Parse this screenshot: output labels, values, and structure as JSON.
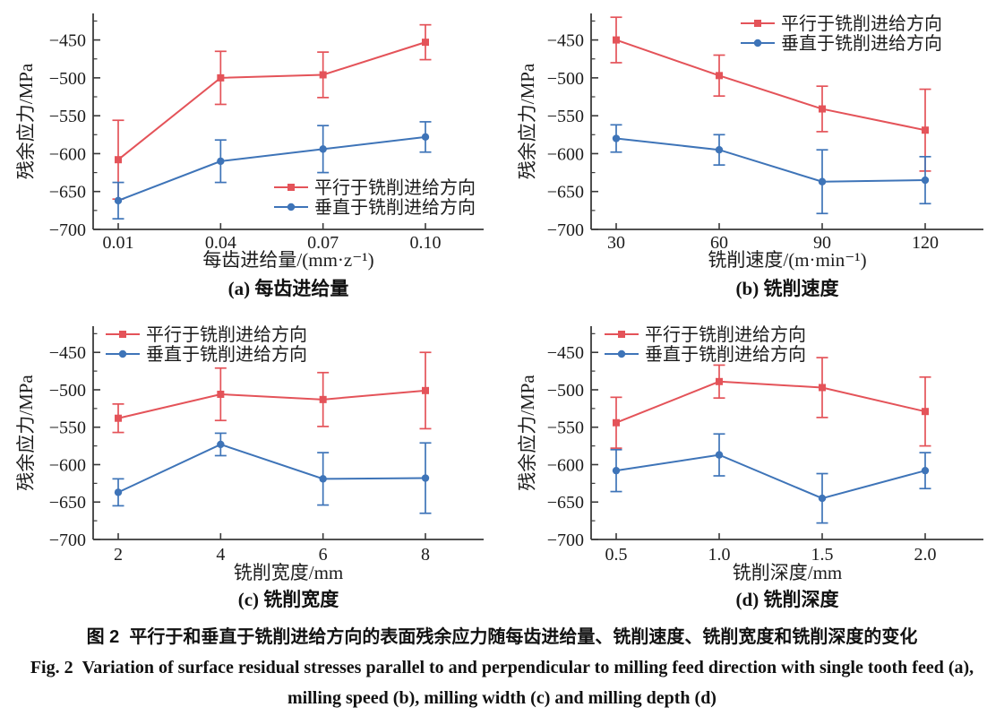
{
  "figure_caption": {
    "zh": "图 2  平行于和垂直于铣削进给方向的表面残余应力随每齿进给量、铣削速度、铣削宽度和铣削深度的变化",
    "en1": "Fig. 2  Variation of surface residual stresses parallel to and perpendicular to milling feed direction with single tooth feed (a),",
    "en2": "milling speed (b), milling width (c) and milling depth (d)"
  },
  "colors": {
    "parallel": "#e45359",
    "perpendicular": "#3e74b8",
    "axis": "#3a3a3a",
    "text": "#1c1c1c"
  },
  "legend_labels": {
    "parallel": "平行于铣削进给方向",
    "perpendicular": "垂直于铣削进给方向"
  },
  "chart_data": [
    {
      "id": "a",
      "type": "line",
      "panel_label": "(a) 每齿进给量",
      "xlabel": "每齿进给量/(mm·z⁻¹)",
      "ylabel": "残余应力/MPa",
      "categories": [
        "0.01",
        "0.04",
        "0.07",
        "0.10"
      ],
      "ylim": [
        -700,
        -415
      ],
      "yticks": [
        -450,
        -500,
        -550,
        -600,
        -650,
        -700
      ],
      "legend_position": "bottom-right",
      "series": [
        {
          "name": "平行于铣削进给方向",
          "key": "parallel",
          "marker": "square",
          "values": [
            -608,
            -500,
            -496,
            -453
          ],
          "errors": [
            52,
            35,
            30,
            23
          ]
        },
        {
          "name": "垂直于铣削进给方向",
          "key": "perpendicular",
          "marker": "circle",
          "values": [
            -662,
            -610,
            -594,
            -578
          ],
          "errors": [
            24,
            28,
            31,
            20
          ]
        }
      ]
    },
    {
      "id": "b",
      "type": "line",
      "panel_label": "(b) 铣削速度",
      "xlabel": "铣削速度/(m·min⁻¹)",
      "ylabel": "残余应力/MPa",
      "categories": [
        "30",
        "60",
        "90",
        "120"
      ],
      "ylim": [
        -700,
        -415
      ],
      "yticks": [
        -450,
        -500,
        -550,
        -600,
        -650,
        -700
      ],
      "legend_position": "top-right",
      "series": [
        {
          "name": "平行于铣削进给方向",
          "key": "parallel",
          "marker": "square",
          "values": [
            -450,
            -497,
            -541,
            -569
          ],
          "errors": [
            30,
            27,
            30,
            54
          ]
        },
        {
          "name": "垂直于铣削进给方向",
          "key": "perpendicular",
          "marker": "circle",
          "values": [
            -580,
            -595,
            -637,
            -635
          ],
          "errors": [
            18,
            20,
            42,
            31
          ]
        }
      ]
    },
    {
      "id": "c",
      "type": "line",
      "panel_label": "(c) 铣削宽度",
      "xlabel": "铣削宽度/mm",
      "ylabel": "残余应力/MPa",
      "categories": [
        "2",
        "4",
        "6",
        "8"
      ],
      "ylim": [
        -700,
        -415
      ],
      "yticks": [
        -450,
        -500,
        -550,
        -600,
        -650,
        -700
      ],
      "legend_position": "top-left",
      "series": [
        {
          "name": "平行于铣削进给方向",
          "key": "parallel",
          "marker": "square",
          "values": [
            -538,
            -506,
            -513,
            -501
          ],
          "errors": [
            19,
            35,
            36,
            51
          ]
        },
        {
          "name": "垂直于铣削进给方向",
          "key": "perpendicular",
          "marker": "circle",
          "values": [
            -637,
            -573,
            -619,
            -618
          ],
          "errors": [
            18,
            15,
            35,
            47
          ]
        }
      ]
    },
    {
      "id": "d",
      "type": "line",
      "panel_label": "(d) 铣削深度",
      "xlabel": "铣削深度/mm",
      "ylabel": "残余应力/MPa",
      "categories": [
        "0.5",
        "1.0",
        "1.5",
        "2.0"
      ],
      "ylim": [
        -700,
        -415
      ],
      "yticks": [
        -450,
        -500,
        -550,
        -600,
        -650,
        -700
      ],
      "legend_position": "top-left",
      "series": [
        {
          "name": "平行于铣削进给方向",
          "key": "parallel",
          "marker": "square",
          "values": [
            -544,
            -489,
            -497,
            -529
          ],
          "errors": [
            34,
            22,
            40,
            46
          ]
        },
        {
          "name": "垂直于铣削进给方向",
          "key": "perpendicular",
          "marker": "circle",
          "values": [
            -608,
            -587,
            -645,
            -608
          ],
          "errors": [
            28,
            28,
            33,
            24
          ]
        }
      ]
    }
  ]
}
